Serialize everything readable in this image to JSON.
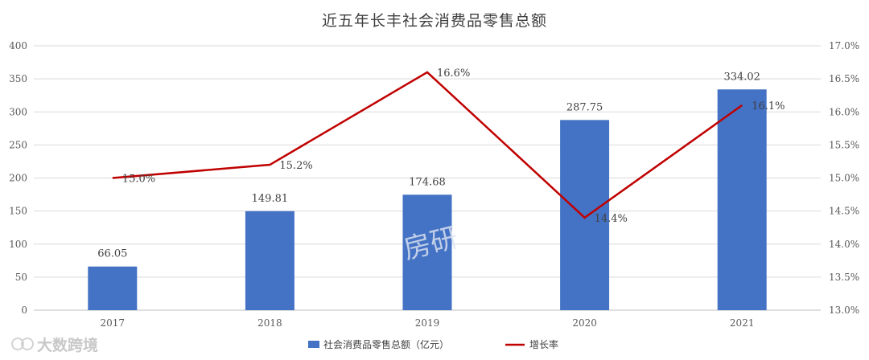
{
  "chart_data": {
    "type": "bar",
    "title": "近五年长丰社会消费品零售总额",
    "categories": [
      "2017",
      "2018",
      "2019",
      "2020",
      "2021"
    ],
    "series": [
      {
        "name": "社会消费品零售总额（亿元）",
        "type": "bar",
        "axis": "left",
        "values": [
          66.05,
          149.81,
          174.68,
          287.75,
          334.02
        ],
        "labels": [
          "66.05",
          "149.81",
          "174.68",
          "287.75",
          "334.02"
        ],
        "color": "#4472c4"
      },
      {
        "name": "增长率",
        "type": "line",
        "axis": "right",
        "values": [
          15.0,
          15.2,
          16.6,
          14.4,
          16.1
        ],
        "labels": [
          "15.0%",
          "15.2%",
          "16.6%",
          "14.4%",
          "16.1%"
        ],
        "color": "#c00000"
      }
    ],
    "y_left": {
      "range": [
        0,
        400
      ],
      "ticks": [
        0,
        50,
        100,
        150,
        200,
        250,
        300,
        350,
        400
      ],
      "tick_labels": [
        "0",
        "50",
        "100",
        "150",
        "200",
        "250",
        "300",
        "350",
        "400"
      ]
    },
    "y_right": {
      "range": [
        13.0,
        17.0
      ],
      "ticks": [
        13.0,
        13.5,
        14.0,
        14.5,
        15.0,
        15.5,
        16.0,
        16.5,
        17.0
      ],
      "tick_labels": [
        "13.0%",
        "13.5%",
        "14.0%",
        "14.5%",
        "15.0%",
        "15.5%",
        "16.0%",
        "16.5%",
        "17.0%"
      ]
    },
    "grid": true,
    "legend_position": "bottom",
    "watermarks": [
      "大数跨境",
      "房研"
    ]
  }
}
